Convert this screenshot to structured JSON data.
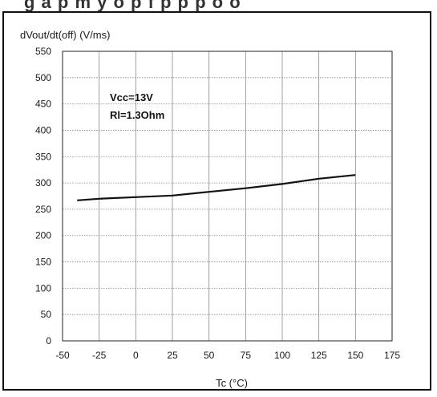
{
  "header_fragment": "g  a  p  m  y    o  p  f  p  p    p  o  o",
  "chart_data": {
    "type": "line",
    "title": "",
    "ylabel": "dVout/dt(off)  (V/ms)",
    "xlabel": "Tc (°C)",
    "xlim": [
      -50,
      175
    ],
    "ylim": [
      0,
      550
    ],
    "x_ticks": [
      -50,
      -25,
      0,
      25,
      50,
      75,
      100,
      125,
      150,
      175
    ],
    "y_ticks": [
      0,
      50,
      100,
      150,
      200,
      250,
      300,
      350,
      400,
      450,
      500,
      550
    ],
    "grid": true,
    "annotations": [
      "Vcc=13V",
      "Rl=1.3Ohm"
    ],
    "series": [
      {
        "x": [
          -40,
          -25,
          0,
          25,
          50,
          75,
          100,
          125,
          150
        ],
        "y": [
          267,
          270,
          273,
          276,
          283,
          290,
          298,
          308,
          315
        ]
      }
    ],
    "line_color": "#111111"
  }
}
